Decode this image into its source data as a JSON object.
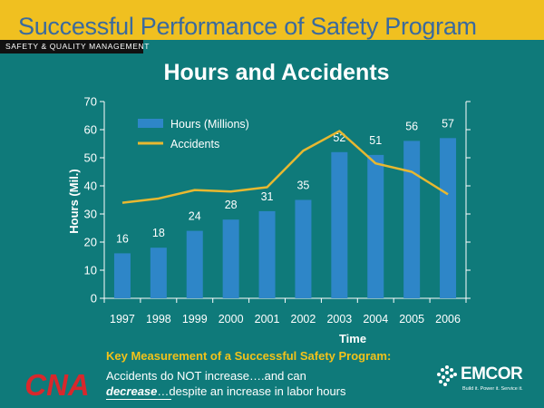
{
  "header": {
    "title": "Successful Performance of Safety Program",
    "tag": "SAFETY & QUALITY MANAGEMENT"
  },
  "chart_data": {
    "type": "bar",
    "title": "Hours and Accidents",
    "xlabel": "Time",
    "ylabel": "Hours (Mil.)",
    "categories": [
      "1997",
      "1998",
      "1999",
      "2000",
      "2001",
      "2002",
      "2003",
      "2004",
      "2005",
      "2006"
    ],
    "ylim": [
      0,
      70
    ],
    "yticks": [
      0,
      10,
      20,
      30,
      40,
      50,
      60,
      70
    ],
    "series": [
      {
        "name": "Hours (Millions)",
        "type": "bar",
        "color": "#2e86c8",
        "values": [
          16,
          18,
          24,
          28,
          31,
          35,
          52,
          51,
          56,
          57
        ]
      },
      {
        "name": "Accidents",
        "type": "line",
        "color": "#e8b830",
        "values": [
          34,
          35.5,
          38.5,
          38,
          39.5,
          52.5,
          59.5,
          48,
          45,
          37
        ]
      }
    ],
    "data_labels": [
      "16",
      "18",
      "24",
      "28",
      "31",
      "35",
      "52",
      "51",
      "56",
      "57"
    ],
    "legend_position": "top-left",
    "grid": false
  },
  "message": {
    "headline": "Key Measurement of a Successful Safety Program:",
    "line1": "Accidents  do NOT increase….and can",
    "line2_emphasis": "decrease",
    "line2_rest": "…despite an increase in labor hours"
  },
  "logos": {
    "left": "CNA",
    "right": "EMCOR",
    "right_tagline": "Build it. Power it. Service it."
  },
  "colors": {
    "background": "#0f7a7a",
    "top_band": "#f0c020",
    "bars": "#2e86c8",
    "accidents_line": "#e8b830",
    "headline": "#f2c21a",
    "cna_red": "#d8282c"
  }
}
